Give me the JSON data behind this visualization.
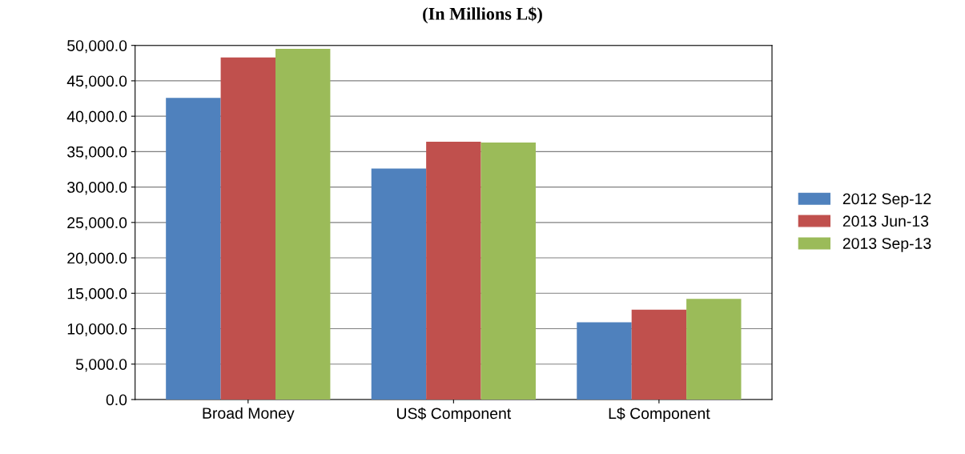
{
  "chart_data": {
    "type": "bar",
    "title": "(In Millions L$)",
    "categories": [
      "Broad Money",
      "US$ Component",
      "L$ Component"
    ],
    "series": [
      {
        "name": "2012 Sep-12",
        "color": "#4f81bd",
        "values": [
          42600,
          32600,
          10900
        ]
      },
      {
        "name": "2013 Jun-13",
        "color": "#c0504d",
        "values": [
          48300,
          36400,
          12700
        ]
      },
      {
        "name": "2013 Sep-13",
        "color": "#9bbb59",
        "values": [
          49500,
          36300,
          14200
        ]
      }
    ],
    "ylim": [
      0,
      50000
    ],
    "yticks": [
      {
        "value": 0,
        "label": "0.0"
      },
      {
        "value": 5000,
        "label": "5,000.0"
      },
      {
        "value": 10000,
        "label": "10,000.0"
      },
      {
        "value": 15000,
        "label": "15,000.0"
      },
      {
        "value": 20000,
        "label": "20,000.0"
      },
      {
        "value": 25000,
        "label": "25,000.0"
      },
      {
        "value": 30000,
        "label": "30,000.0"
      },
      {
        "value": 35000,
        "label": "35,000.0"
      },
      {
        "value": 40000,
        "label": "40,000.0"
      },
      {
        "value": 45000,
        "label": "45,000.0"
      },
      {
        "value": 50000,
        "label": "50,000.0"
      }
    ],
    "grid": "y",
    "legend": "right"
  }
}
